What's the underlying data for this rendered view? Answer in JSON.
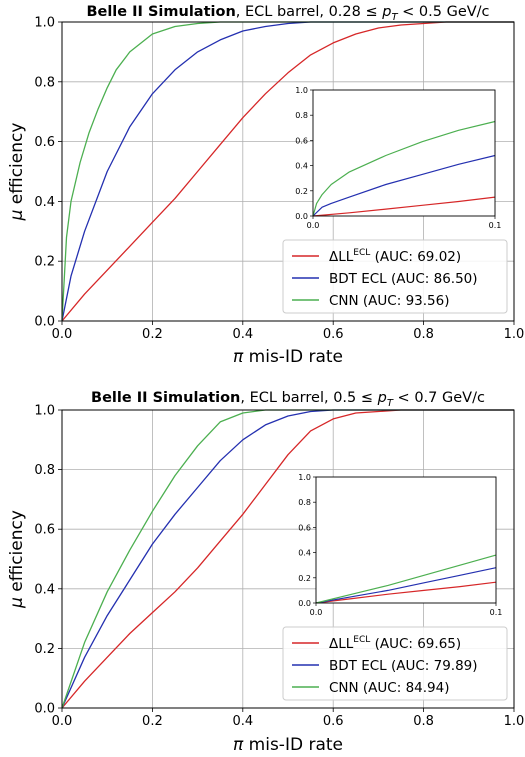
{
  "chart_data": [
    {
      "type": "line",
      "title_bold": "Belle II Simulation",
      "title_rest": ", ECL barrel, 0.28 ≤ ",
      "title_var": "p",
      "title_sub": "T",
      "title_tail": " < 0.5 GeV/c",
      "xlabel_sym": "π",
      "xlabel_rest": " mis-ID rate",
      "ylabel_sym": "μ",
      "ylabel_rest": " efficiency",
      "xlim": [
        0,
        1
      ],
      "ylim": [
        0,
        1
      ],
      "xticks": [
        "0.0",
        "0.2",
        "0.4",
        "0.6",
        "0.8",
        "1.0"
      ],
      "yticks": [
        "0.0",
        "0.2",
        "0.4",
        "0.6",
        "0.8",
        "1.0"
      ],
      "grid": true,
      "legend_position": "bottom-right",
      "series": [
        {
          "name_main": "ΔLL",
          "name_sup": "ECL",
          "name_tail": " (AUC: 69.02)",
          "color": "#d62728",
          "x": [
            0,
            0.05,
            0.1,
            0.15,
            0.2,
            0.25,
            0.3,
            0.35,
            0.4,
            0.45,
            0.5,
            0.55,
            0.6,
            0.65,
            0.7,
            0.75,
            0.8,
            0.85,
            0.9,
            0.95,
            1.0
          ],
          "y": [
            0,
            0.09,
            0.17,
            0.25,
            0.33,
            0.41,
            0.5,
            0.59,
            0.68,
            0.76,
            0.83,
            0.89,
            0.93,
            0.96,
            0.98,
            0.99,
            0.995,
            1.0,
            1.0,
            1.0,
            1.0
          ]
        },
        {
          "name_main": "BDT ECL",
          "name_sup": "",
          "name_tail": " (AUC: 86.50)",
          "color": "#2430b0",
          "x": [
            0,
            0.02,
            0.05,
            0.1,
            0.15,
            0.2,
            0.25,
            0.3,
            0.35,
            0.4,
            0.45,
            0.5,
            0.55,
            0.6,
            1.0
          ],
          "y": [
            0,
            0.15,
            0.3,
            0.5,
            0.65,
            0.76,
            0.84,
            0.9,
            0.94,
            0.97,
            0.985,
            0.995,
            1.0,
            1.0,
            1.0
          ]
        },
        {
          "name_main": "CNN",
          "name_sup": "",
          "name_tail": " (AUC: 93.56)",
          "color": "#4caf50",
          "x": [
            0,
            0.01,
            0.02,
            0.04,
            0.06,
            0.08,
            0.1,
            0.12,
            0.15,
            0.2,
            0.25,
            0.3,
            0.35,
            1.0
          ],
          "y": [
            0,
            0.28,
            0.4,
            0.53,
            0.63,
            0.71,
            0.78,
            0.84,
            0.9,
            0.96,
            0.985,
            0.995,
            1.0,
            1.0
          ]
        }
      ],
      "inset": {
        "xlim": [
          0,
          0.1
        ],
        "ylim": [
          0,
          1
        ],
        "xticks": [
          "0.0",
          "0.1"
        ],
        "yticks": [
          "0.0",
          "0.2",
          "0.4",
          "0.6",
          "0.8",
          "1.0"
        ],
        "series": [
          {
            "color": "#d62728",
            "x": [
              0,
              0.02,
              0.04,
              0.06,
              0.08,
              0.1
            ],
            "y": [
              0,
              0.025,
              0.055,
              0.085,
              0.115,
              0.15
            ]
          },
          {
            "color": "#2430b0",
            "x": [
              0,
              0.005,
              0.01,
              0.02,
              0.04,
              0.06,
              0.08,
              0.1
            ],
            "y": [
              0,
              0.07,
              0.1,
              0.15,
              0.25,
              0.33,
              0.41,
              0.48
            ]
          },
          {
            "color": "#4caf50",
            "x": [
              0,
              0.002,
              0.005,
              0.01,
              0.02,
              0.04,
              0.06,
              0.08,
              0.1
            ],
            "y": [
              0,
              0.1,
              0.17,
              0.25,
              0.35,
              0.48,
              0.59,
              0.68,
              0.75
            ]
          }
        ]
      }
    },
    {
      "type": "line",
      "title_bold": "Belle II Simulation",
      "title_rest": ", ECL barrel, 0.5 ≤ ",
      "title_var": "p",
      "title_sub": "T",
      "title_tail": " < 0.7 GeV/c",
      "xlabel_sym": "π",
      "xlabel_rest": " mis-ID rate",
      "ylabel_sym": "μ",
      "ylabel_rest": " efficiency",
      "xlim": [
        0,
        1
      ],
      "ylim": [
        0,
        1
      ],
      "xticks": [
        "0.0",
        "0.2",
        "0.4",
        "0.6",
        "0.8",
        "1.0"
      ],
      "yticks": [
        "0.0",
        "0.2",
        "0.4",
        "0.6",
        "0.8",
        "1.0"
      ],
      "grid": true,
      "legend_position": "bottom-right",
      "series": [
        {
          "name_main": "ΔLL",
          "name_sup": "ECL",
          "name_tail": " (AUC: 69.65)",
          "color": "#d62728",
          "x": [
            0,
            0.05,
            0.1,
            0.15,
            0.2,
            0.25,
            0.3,
            0.35,
            0.4,
            0.45,
            0.5,
            0.55,
            0.6,
            0.65,
            0.7,
            0.75,
            0.8,
            1.0
          ],
          "y": [
            0,
            0.09,
            0.17,
            0.25,
            0.32,
            0.39,
            0.47,
            0.56,
            0.65,
            0.75,
            0.85,
            0.93,
            0.97,
            0.99,
            0.995,
            1.0,
            1.0,
            1.0
          ]
        },
        {
          "name_main": "BDT ECL",
          "name_sup": "",
          "name_tail": " (AUC: 79.89)",
          "color": "#2430b0",
          "x": [
            0,
            0.05,
            0.1,
            0.15,
            0.2,
            0.25,
            0.3,
            0.35,
            0.4,
            0.45,
            0.5,
            0.55,
            0.6,
            1.0
          ],
          "y": [
            0,
            0.17,
            0.31,
            0.43,
            0.55,
            0.65,
            0.74,
            0.83,
            0.9,
            0.95,
            0.98,
            0.995,
            1.0,
            1.0
          ]
        },
        {
          "name_main": "CNN",
          "name_sup": "",
          "name_tail": " (AUC: 84.94)",
          "color": "#4caf50",
          "x": [
            0,
            0.05,
            0.1,
            0.15,
            0.2,
            0.25,
            0.3,
            0.35,
            0.4,
            0.45,
            1.0
          ],
          "y": [
            0,
            0.22,
            0.39,
            0.53,
            0.66,
            0.78,
            0.88,
            0.96,
            0.99,
            1.0,
            1.0
          ]
        }
      ],
      "inset": {
        "xlim": [
          0,
          0.1
        ],
        "ylim": [
          0,
          1
        ],
        "xticks": [
          "0.0",
          "0.1"
        ],
        "yticks": [
          "0.0",
          "0.2",
          "0.4",
          "0.6",
          "0.8",
          "1.0"
        ],
        "series": [
          {
            "color": "#d62728",
            "x": [
              0,
              0.02,
              0.04,
              0.06,
              0.08,
              0.1
            ],
            "y": [
              0,
              0.035,
              0.07,
              0.1,
              0.13,
              0.165
            ]
          },
          {
            "color": "#2430b0",
            "x": [
              0,
              0.02,
              0.04,
              0.06,
              0.08,
              0.1
            ],
            "y": [
              0,
              0.05,
              0.1,
              0.16,
              0.22,
              0.28
            ]
          },
          {
            "color": "#4caf50",
            "x": [
              0,
              0.02,
              0.04,
              0.06,
              0.08,
              0.1
            ],
            "y": [
              0,
              0.07,
              0.14,
              0.22,
              0.3,
              0.38
            ]
          }
        ]
      }
    }
  ]
}
